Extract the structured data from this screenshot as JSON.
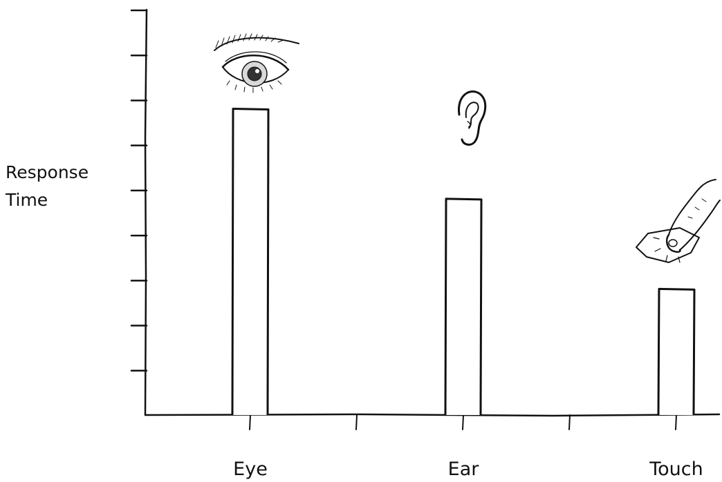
{
  "chart_data": {
    "type": "bar",
    "title": "",
    "xlabel": "",
    "ylabel_lines": [
      "Response",
      "Time"
    ],
    "categories": [
      "Eye",
      "Ear",
      "Touch"
    ],
    "values": [
      6.8,
      4.8,
      2.8
    ],
    "ylim": [
      0,
      9
    ],
    "y_ticks_count": 9,
    "y_tick_labels_shown": false,
    "grid": false,
    "legend": "none",
    "style": "hand-drawn, hollow bars",
    "icons": [
      "eye-icon",
      "ear-icon",
      "finger-touch-icon"
    ]
  }
}
